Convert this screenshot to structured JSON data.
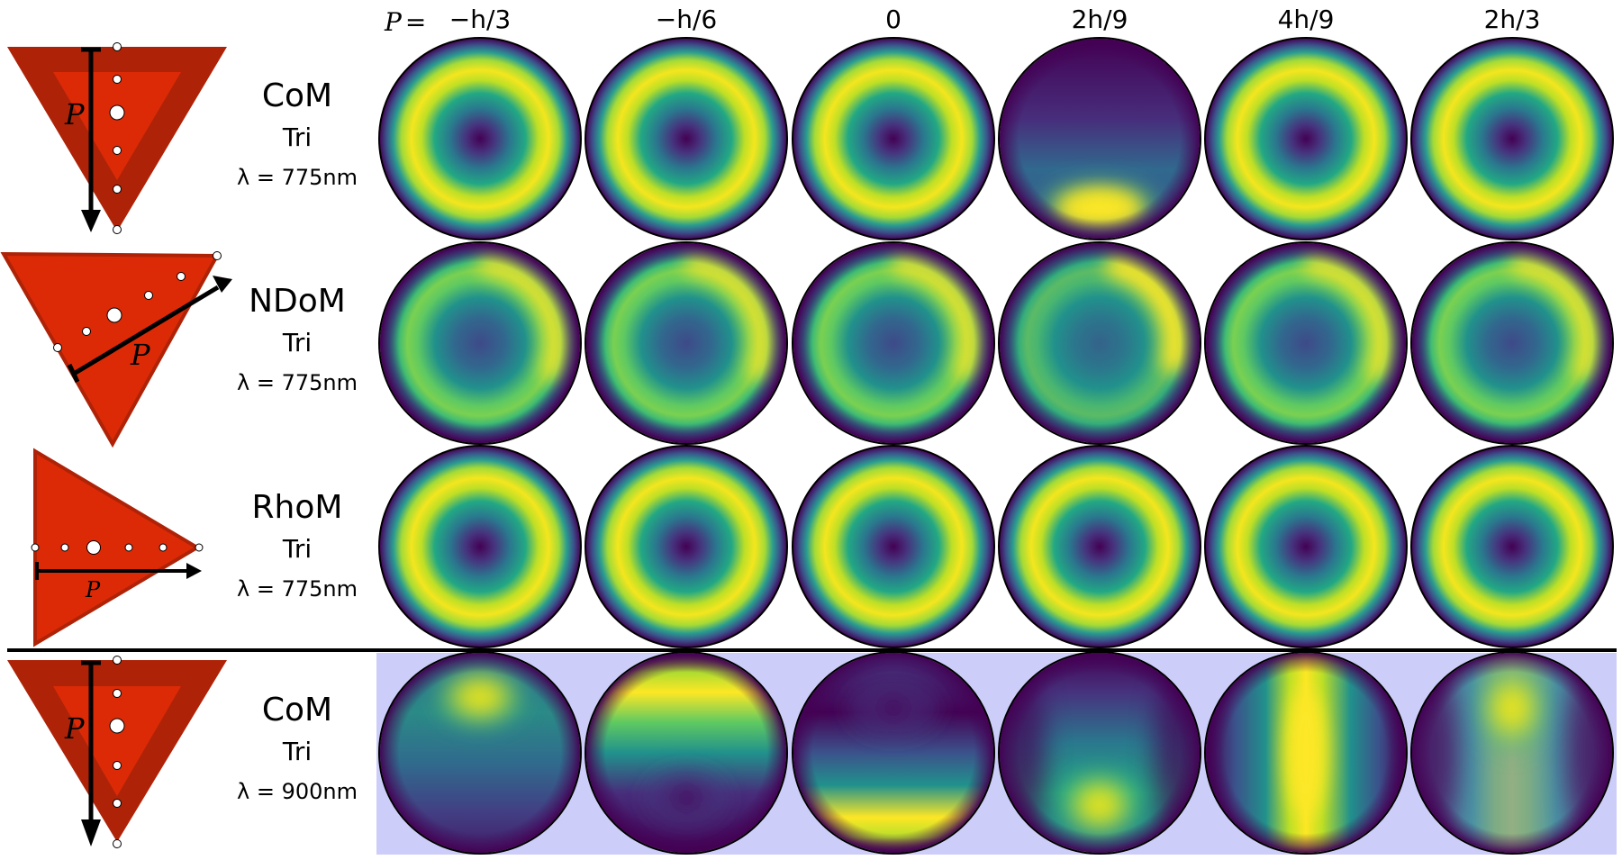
{
  "figure": {
    "p_prefix": "P =",
    "columns": [
      {
        "label": "−h/3"
      },
      {
        "label": "−h/6"
      },
      {
        "label": "0"
      },
      {
        "label": "2h/9"
      },
      {
        "label": "4h/9"
      },
      {
        "label": "2h/3"
      }
    ],
    "rows": [
      {
        "mode": "CoM",
        "shape": "Tri",
        "wavelength": "λ = 775nm",
        "p_label": "P",
        "highlighted": false,
        "patterns": [
          "ring-centered",
          "ring-centered",
          "ring-centered",
          "bottom-lobe",
          "ring-centered",
          "ring-centered"
        ]
      },
      {
        "mode": "NDoM",
        "shape": "Tri",
        "wavelength": "λ = 775nm",
        "p_label": "P",
        "highlighted": false,
        "patterns": [
          "crescent-upper-right",
          "crescent-upper-right",
          "crescent-upper-right",
          "crescent-upper-right-strong",
          "crescent-upper-right",
          "crescent-upper-right"
        ]
      },
      {
        "mode": "RhoM",
        "shape": "Tri",
        "wavelength": "λ = 775nm",
        "p_label": "P",
        "highlighted": false,
        "patterns": [
          "ring-centered",
          "ring-centered",
          "ring-centered",
          "ring-centered",
          "ring-centered",
          "ring-centered"
        ]
      },
      {
        "mode": "CoM",
        "shape": "Tri",
        "wavelength": "λ = 900nm",
        "p_label": "P",
        "highlighted": true,
        "patterns": [
          "top-lobe",
          "top-band-bottom-dark",
          "bottom-band-top-dark",
          "bottom-lobe-wide",
          "vertical-stripe",
          "upper-lobe-fading"
        ]
      }
    ],
    "colors": {
      "triangle_outer": "#ae2308",
      "triangle_inner": "#dc2a06",
      "highlight_panel": "#cdcdfa",
      "divider": "#000000",
      "viridis_low": "#440154",
      "viridis_mid": "#21918c",
      "viridis_high": "#fde725"
    }
  }
}
